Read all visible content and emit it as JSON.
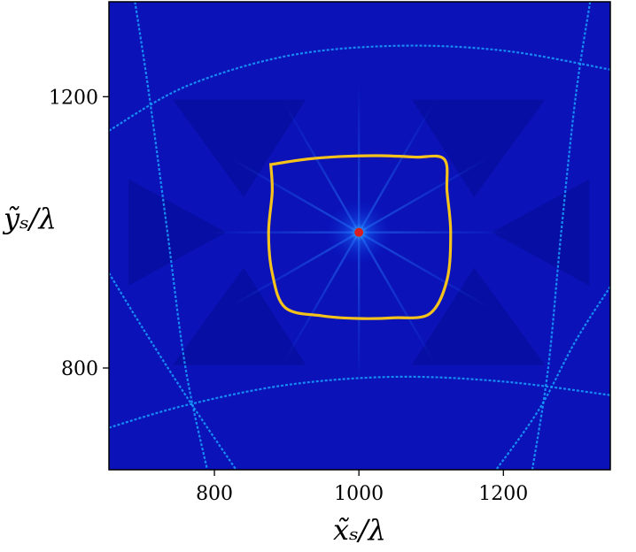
{
  "chart_data": {
    "type": "heatmap",
    "colormap": "jet",
    "colors": {
      "background": "#0a12b8",
      "caustic": "#1aa0ff",
      "curve": "#f4c21b",
      "source": "#d81e1e"
    },
    "xlabel": "x̃ₛ/λ",
    "ylabel": "ỹₛ/λ",
    "xlim": [
      654,
      1348
    ],
    "ylim": [
      650,
      1340
    ],
    "xticks": [
      800,
      1000,
      1200
    ],
    "yticks": [
      800,
      1200
    ],
    "grid": false,
    "legend": "none",
    "source_point": {
      "x": 1000,
      "y": 1000
    },
    "curve": {
      "name": "",
      "x": [
        878,
        928,
        978,
        1028,
        1078,
        1118,
        1122,
        1127,
        1122,
        1098,
        1048,
        998,
        948,
        898,
        880,
        875,
        880
      ],
      "y": [
        1100,
        1108,
        1112,
        1113,
        1111,
        1108,
        1060,
        1000,
        930,
        880,
        874,
        873,
        877,
        889,
        940,
        1000,
        1060
      ]
    },
    "caustic_curves": [
      {
        "x": [
          654,
          760,
          900,
          1050,
          1200,
          1348
        ],
        "y": [
          1150,
          1215,
          1260,
          1275,
          1268,
          1240
        ]
      },
      {
        "x": [
          654,
          760,
          900,
          1050,
          1200,
          1348
        ],
        "y": [
          712,
          745,
          775,
          787,
          780,
          760
        ]
      },
      {
        "x": [
          690,
          710,
          735,
          760,
          790
        ],
        "y": [
          1340,
          1200,
          1000,
          800,
          650
        ]
      },
      {
        "x": [
          1320,
          1300,
          1280,
          1262,
          1240
        ],
        "y": [
          1340,
          1200,
          1000,
          800,
          650
        ]
      },
      {
        "x": [
          654,
          700,
          760,
          830
        ],
        "y": [
          940,
          860,
          760,
          650
        ]
      },
      {
        "x": [
          1348,
          1300,
          1250,
          1190
        ],
        "y": [
          920,
          840,
          740,
          650
        ]
      }
    ]
  }
}
